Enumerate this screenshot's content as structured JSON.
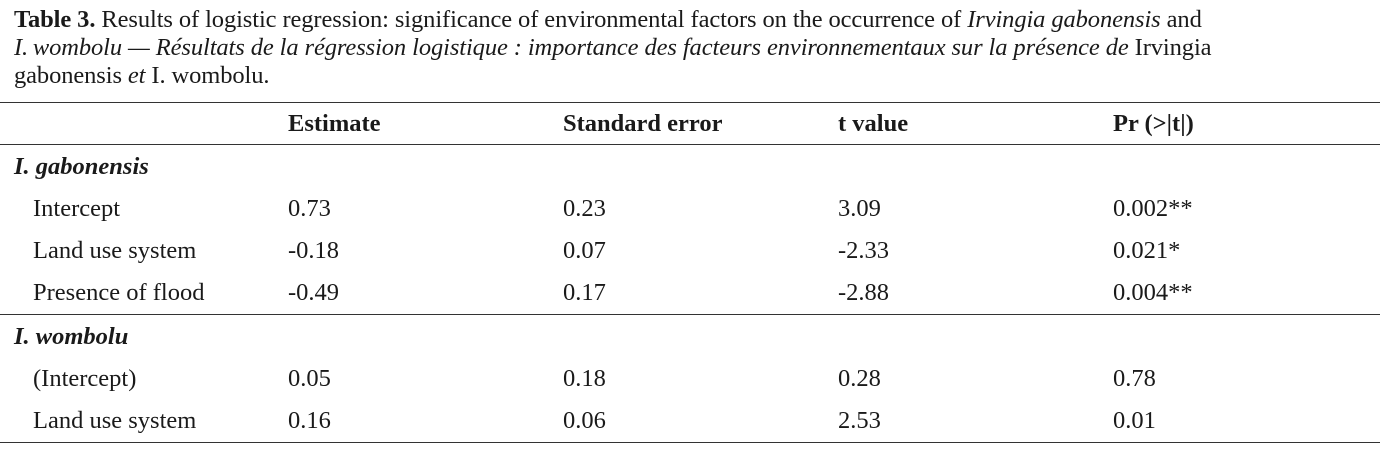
{
  "caption": {
    "label": "Table 3.",
    "seg1": " Results of logistic regression: significance of environmental factors on the occurrence of ",
    "seg2": "Irvingia gabonensis",
    "seg3": " and",
    "seg4": "I. wombolu — Résultats de la régression logistique : importance des facteurs environnementaux sur la présence de",
    "seg5": " Irvingia",
    "seg6": "gabonensis ",
    "seg7": "et",
    "seg8": " I. wombolu."
  },
  "columns": [
    "Estimate",
    "Standard error",
    "t value",
    "Pr (>|t|)"
  ],
  "groups": [
    {
      "name": "I. gabonensis",
      "rows": [
        {
          "label": "Intercept",
          "values": [
            "0.73",
            "0.23",
            "3.09",
            "0.002**"
          ]
        },
        {
          "label": "Land use system",
          "values": [
            "-0.18",
            "0.07",
            "-2.33",
            "0.021*"
          ]
        },
        {
          "label": "Presence of flood",
          "values": [
            "-0.49",
            "0.17",
            "-2.88",
            "0.004**"
          ]
        }
      ]
    },
    {
      "name": "I. wombolu",
      "rows": [
        {
          "label": "(Intercept)",
          "values": [
            "0.05",
            "0.18",
            "0.28",
            "0.78"
          ]
        },
        {
          "label": "Land use system",
          "values": [
            "0.16",
            "0.06",
            "2.53",
            "0.01"
          ]
        }
      ]
    }
  ]
}
